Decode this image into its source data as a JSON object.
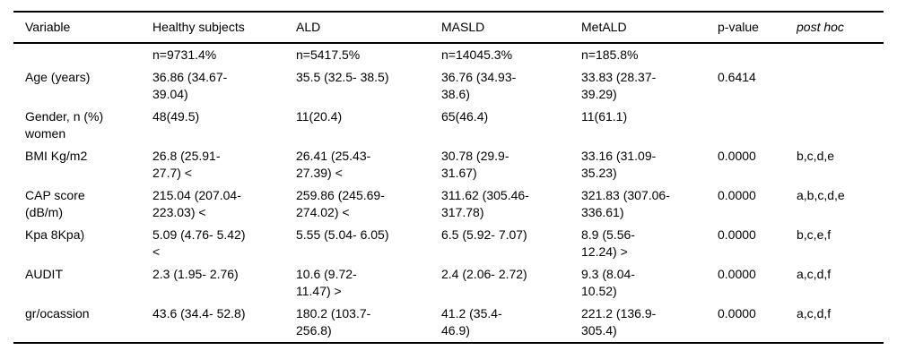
{
  "table": {
    "columns": {
      "variable": "Variable",
      "healthy": "Healthy subjects",
      "ald": "ALD",
      "masld": "MASLD",
      "metald": "MetALD",
      "pvalue": "p-value",
      "posthoc": "post hoc"
    },
    "rows": [
      {
        "variable": "",
        "healthy": "n=9731.4%",
        "ald": "n=5417.5%",
        "masld": "n=14045.3%",
        "metald": "n=185.8%",
        "pvalue": "",
        "posthoc": ""
      },
      {
        "variable": "Age (years)",
        "healthy": "36.86 (34.67-\n39.04)",
        "ald": "35.5 (32.5- 38.5)",
        "masld": "36.76 (34.93-\n38.6)",
        "metald": "33.83 (28.37-\n39.29)",
        "pvalue": "0.6414",
        "posthoc": ""
      },
      {
        "variable": "Gender, n (%)\nwomen",
        "healthy": "48(49.5)",
        "ald": "11(20.4)",
        "masld": "65(46.4)",
        "metald": "11(61.1)",
        "pvalue": "",
        "posthoc": ""
      },
      {
        "variable": "BMI Kg/m2",
        "healthy": "26.8 (25.91-\n27.7) <",
        "ald": "26.41 (25.43-\n27.39) <",
        "masld": "30.78 (29.9-\n31.67)",
        "metald": "33.16 (31.09-\n35.23)",
        "pvalue": "0.0000",
        "posthoc": "b,c,d,e"
      },
      {
        "variable": "CAP score\n(dB/m)",
        "healthy": "215.04 (207.04-\n223.03) <",
        "ald": "259.86 (245.69-\n274.02) <",
        "masld": "311.62 (305.46-\n317.78)",
        "metald": "321.83 (307.06-\n336.61)",
        "pvalue": "0.0000",
        "posthoc": "a,b,c,d,e"
      },
      {
        "variable": "Kpa 8Kpa)",
        "healthy": "5.09 (4.76- 5.42)\n<",
        "ald": "5.55 (5.04- 6.05)",
        "masld": "6.5 (5.92- 7.07)",
        "metald": "8.9 (5.56-\n12.24) >",
        "pvalue": "0.0000",
        "posthoc": "b,c,e,f"
      },
      {
        "variable": "AUDIT",
        "healthy": "2.3 (1.95- 2.76)",
        "ald": "10.6 (9.72-\n11.47) >",
        "masld": "2.4 (2.06- 2.72)",
        "metald": "9.3 (8.04-\n10.52)",
        "pvalue": "0.0000",
        "posthoc": "a,c,d,f"
      },
      {
        "variable": "gr/ocassion",
        "healthy": "43.6 (34.4- 52.8)",
        "ald": "180.2 (103.7-\n256.8)",
        "masld": "41.2 (35.4-\n46.9)",
        "metald": "221.2 (136.9-\n305.4)",
        "pvalue": "0.0000",
        "posthoc": "a,c,d,f"
      }
    ]
  }
}
